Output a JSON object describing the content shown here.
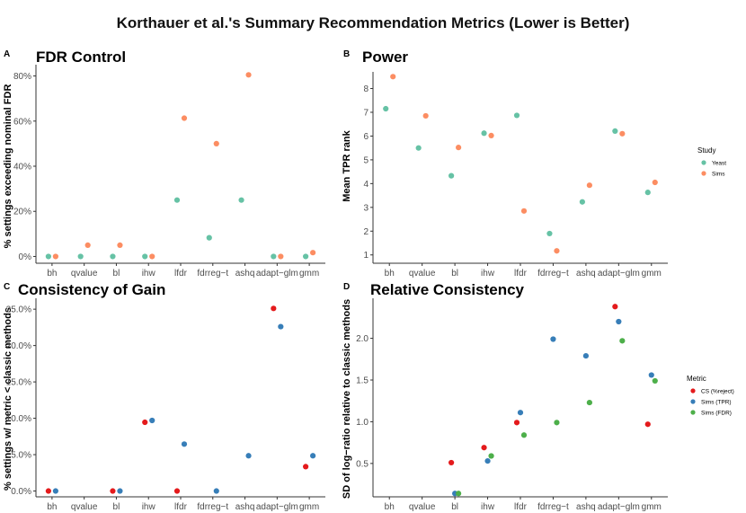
{
  "title": "Korthauer et al.'s Summary Recommendation Metrics (Lower is Better)",
  "methods": [
    "bh",
    "qvalue",
    "bl",
    "ihw",
    "lfdr",
    "fdrreg−t",
    "ashq",
    "adapt−glm",
    "gmm"
  ],
  "colors": {
    "Yeast": "#66c2a5",
    "Sims": "#fc8d62",
    "CS (%reject)": "#e41a1c",
    "Sims (TPR)": "#377eb8",
    "Sims (FDR)": "#4daf4a"
  },
  "legends": {
    "study": {
      "title": "Study",
      "items": [
        "Yeast",
        "Sims"
      ]
    },
    "metric": {
      "title": "Metric",
      "items": [
        "CS (%reject)",
        "Sims (TPR)",
        "Sims (FDR)"
      ]
    }
  },
  "panels": [
    {
      "tag": "A",
      "title": "FDR Control",
      "ylabel": "% settings exceeding nominal FDR"
    },
    {
      "tag": "B",
      "title": "Power",
      "ylabel": "Mean TPR rank"
    },
    {
      "tag": "C",
      "title": "Consistency of Gain",
      "ylabel": "% settings w/ metric < classic methods"
    },
    {
      "tag": "D",
      "title": "Relative Consistency",
      "ylabel": "SD of log−ratio relative to classic methods"
    }
  ],
  "chart_data": [
    {
      "type": "scatter",
      "title": "FDR Control",
      "xlabel": "",
      "ylabel": "% settings exceeding nominal FDR",
      "categories": [
        "bh",
        "qvalue",
        "bl",
        "ihw",
        "lfdr",
        "fdrreg−t",
        "ashq",
        "adapt−glm",
        "gmm"
      ],
      "ylim": [
        -3,
        85
      ],
      "yticks": [
        0,
        20,
        40,
        60,
        80
      ],
      "ytick_labels": [
        "0%",
        "20%",
        "40%",
        "60%",
        "80%"
      ],
      "series": [
        {
          "name": "Yeast",
          "values": [
            0,
            0,
            0,
            0,
            25,
            8.3,
            25,
            0,
            0
          ]
        },
        {
          "name": "Sims",
          "values": [
            0,
            5,
            5,
            0,
            61.3,
            50,
            80.5,
            0,
            1.7
          ]
        }
      ]
    },
    {
      "type": "scatter",
      "title": "Power",
      "xlabel": "",
      "ylabel": "Mean TPR rank",
      "categories": [
        "bh",
        "qvalue",
        "bl",
        "ihw",
        "lfdr",
        "fdrreg−t",
        "ashq",
        "adapt−glm",
        "gmm"
      ],
      "ylim": [
        0.65,
        8.7
      ],
      "yticks": [
        1,
        2,
        3,
        4,
        5,
        6,
        7,
        8
      ],
      "ytick_labels": [
        "1",
        "2",
        "3",
        "4",
        "5",
        "6",
        "7",
        "8"
      ],
      "series": [
        {
          "name": "Yeast",
          "values": [
            7.15,
            5.5,
            4.33,
            6.12,
            6.87,
            1.9,
            3.23,
            6.21,
            3.63
          ]
        },
        {
          "name": "Sims",
          "values": [
            8.5,
            6.85,
            5.52,
            6.02,
            2.85,
            1.17,
            3.93,
            6.1,
            4.05
          ]
        }
      ]
    },
    {
      "type": "scatter",
      "title": "Consistency of Gain",
      "xlabel": "",
      "ylabel": "% settings w/ metric < classic methods",
      "categories": [
        "bh",
        "qvalue",
        "bl",
        "ihw",
        "lfdr",
        "fdrreg−t",
        "ashq",
        "adapt−glm",
        "gmm"
      ],
      "ylim": [
        -0.8,
        26.5
      ],
      "yticks": [
        0,
        5,
        10,
        15,
        20,
        25
      ],
      "ytick_labels": [
        "0.0%",
        "5.0%",
        "10.0%",
        "15.0%",
        "20.0%",
        "25.0%"
      ],
      "series": [
        {
          "name": "CS (%reject)",
          "values": [
            0,
            null,
            0,
            9.45,
            0,
            null,
            null,
            25.1,
            3.35
          ]
        },
        {
          "name": "Sims (TPR)",
          "values": [
            0,
            null,
            0,
            9.7,
            6.45,
            0,
            4.85,
            22.6,
            4.85
          ]
        }
      ]
    },
    {
      "type": "scatter",
      "title": "Relative Consistency",
      "xlabel": "",
      "ylabel": "SD of log−ratio relative to classic methods",
      "categories": [
        "bh",
        "qvalue",
        "bl",
        "ihw",
        "lfdr",
        "fdrreg−t",
        "ashq",
        "adapt−glm",
        "gmm"
      ],
      "ylim": [
        0.1,
        2.48
      ],
      "yticks": [
        0.5,
        1.0,
        1.5,
        2.0
      ],
      "ytick_labels": [
        "0.5",
        "1.0",
        "1.5",
        "2.0"
      ],
      "series": [
        {
          "name": "CS (%reject)",
          "values": [
            null,
            null,
            0.51,
            0.69,
            0.99,
            null,
            null,
            2.38,
            0.97
          ]
        },
        {
          "name": "Sims (TPR)",
          "values": [
            null,
            null,
            0.14,
            0.53,
            1.11,
            1.99,
            1.79,
            2.2,
            1.56
          ]
        },
        {
          "name": "Sims (FDR)",
          "values": [
            null,
            null,
            0.14,
            0.59,
            0.84,
            0.99,
            1.23,
            1.97,
            1.49
          ]
        }
      ]
    }
  ]
}
